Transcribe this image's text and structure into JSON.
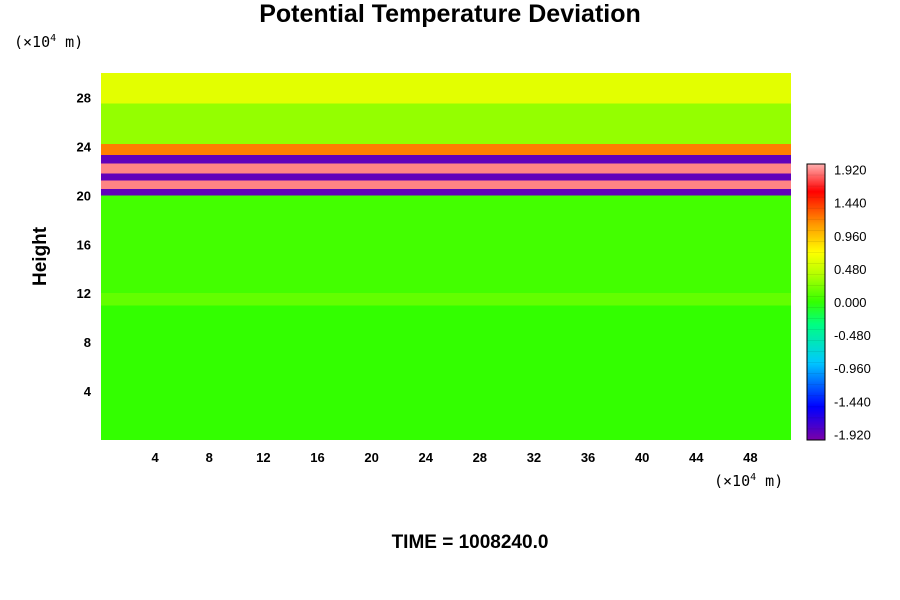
{
  "chart_data": {
    "type": "heatmap",
    "title": "Potential Temperature Deviation",
    "ylabel": "Height",
    "y_unit_text": "(×10",
    "y_unit_exp": "4",
    "y_unit_tail": " m)",
    "x_unit_text": "(×10",
    "x_unit_exp": "4",
    "x_unit_tail": " m)",
    "footer": "TIME = 1008240.0",
    "xlim": [
      0,
      51
    ],
    "ylim": [
      0,
      30
    ],
    "x_ticks": [
      "4",
      "8",
      "12",
      "16",
      "20",
      "24",
      "28",
      "32",
      "36",
      "40",
      "44",
      "48"
    ],
    "x_tick_values": [
      4,
      8,
      12,
      16,
      20,
      24,
      28,
      32,
      36,
      40,
      44,
      48
    ],
    "y_ticks": [
      "4",
      "8",
      "12",
      "16",
      "20",
      "24",
      "28"
    ],
    "y_tick_values": [
      4,
      8,
      12,
      16,
      20,
      24,
      28
    ],
    "colorbar": {
      "min": -2.0,
      "max": 2.0,
      "labels": [
        "1.920",
        "1.440",
        "0.960",
        "0.480",
        "0.000",
        "-0.480",
        "-0.960",
        "-1.440",
        "-1.920"
      ],
      "label_values": [
        1.92,
        1.44,
        0.96,
        0.48,
        0.0,
        -0.48,
        -0.96,
        -1.44,
        -1.92
      ]
    },
    "field_bands": [
      {
        "y_from": 0,
        "y_to": 11,
        "value": 0.0
      },
      {
        "y_from": 11,
        "y_to": 12,
        "value": 0.15
      },
      {
        "y_from": 12,
        "y_to": 20,
        "value": 0.05
      },
      {
        "y_from": 20,
        "y_to": 20.5,
        "value": -1.9
      },
      {
        "y_from": 20.5,
        "y_to": 21.2,
        "value": 1.9
      },
      {
        "y_from": 21.2,
        "y_to": 21.8,
        "value": -1.9
      },
      {
        "y_from": 21.8,
        "y_to": 22.6,
        "value": 1.9
      },
      {
        "y_from": 22.6,
        "y_to": 23.3,
        "value": -1.9
      },
      {
        "y_from": 23.3,
        "y_to": 24.2,
        "value": 1.2
      },
      {
        "y_from": 24.2,
        "y_to": 27.5,
        "value": 0.3
      },
      {
        "y_from": 27.5,
        "y_to": 30,
        "value": 0.6
      }
    ]
  }
}
